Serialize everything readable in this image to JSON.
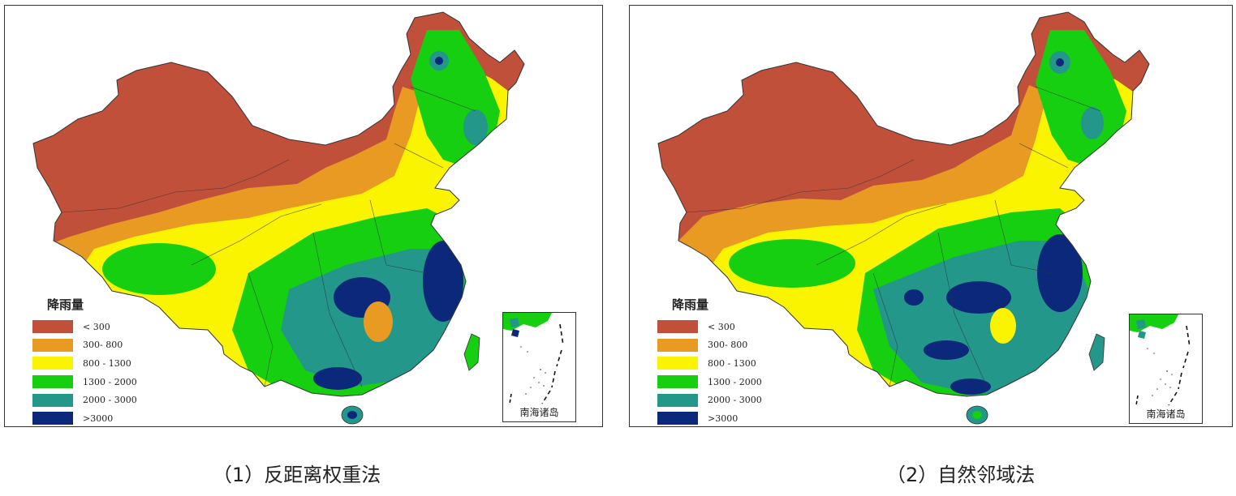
{
  "colors": {
    "lt300": "#c0503a",
    "c300_800": "#e89a22",
    "c800_1300": "#fbf400",
    "c1300_2000": "#15cf10",
    "c2000_3000": "#22978a",
    "gt3000": "#0c287a",
    "border": "#333333"
  },
  "legend": {
    "title": "降雨量",
    "items": [
      {
        "label": "< 300",
        "color": "#c0503a"
      },
      {
        "label": "300- 800",
        "color": "#e89a22"
      },
      {
        "label": "800 - 1300",
        "color": "#fbf400"
      },
      {
        "label": "1300 - 2000",
        "color": "#15cf10"
      },
      {
        "label": "2000 - 3000",
        "color": "#22978a"
      },
      {
        "label": ">3000",
        "color": "#0c287a"
      }
    ]
  },
  "inset_label": "南海诸岛",
  "panels": [
    {
      "caption": "（1）反距离权重法"
    },
    {
      "caption": "（2）自然邻域法"
    }
  ]
}
